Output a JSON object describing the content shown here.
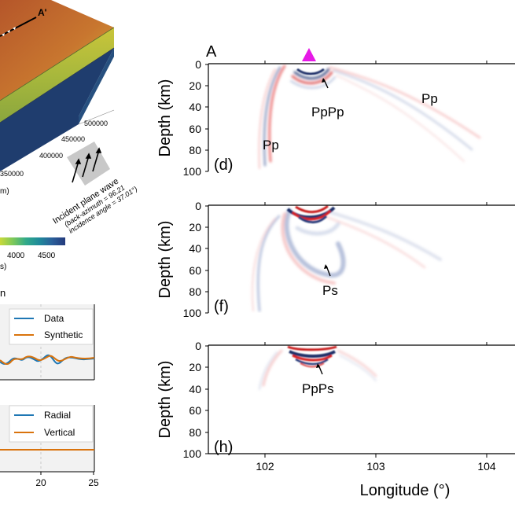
{
  "left": {
    "point_label": "A'",
    "y_ticks": [
      "500000",
      "450000",
      "400000",
      "350000"
    ],
    "y_unit": "m)",
    "wave_label": "Incident plane wave",
    "wave_sub": "(back-azimuth = 96.21",
    "wave_sub2": "incidence angle = 37.01°)",
    "colorbar_ticks": [
      "4000",
      "4500"
    ],
    "colorbar_unit": "s)",
    "colorbar_colors": [
      "#c8d93a",
      "#7cc85a",
      "#31a98a",
      "#1f8a9a",
      "#2b5f9a",
      "#243a7c"
    ],
    "panel_letter": "n",
    "legend1": [
      {
        "label": "Data",
        "color": "#1f77b4"
      },
      {
        "label": "Synthetic",
        "color": "#d9730d"
      }
    ],
    "legend2": [
      {
        "label": "Radial",
        "color": "#1f77b4"
      },
      {
        "label": "Vertical",
        "color": "#d9730d"
      }
    ],
    "x_ticks": [
      "20",
      "25"
    ]
  },
  "right": {
    "section_label": "A",
    "station_color": "#e619e6",
    "y_label": "Depth (km)",
    "y_ticks": [
      "0",
      "20",
      "40",
      "60",
      "80",
      "100"
    ],
    "x_label": "Longitude (°)",
    "x_ticks": [
      "102",
      "103",
      "104"
    ],
    "panels": [
      {
        "letter": "(d)",
        "phase_labels": [
          "PpPp",
          "Pp",
          "Pp"
        ]
      },
      {
        "letter": "(f)",
        "phase_labels": [
          "Ps"
        ]
      },
      {
        "letter": "(h)",
        "phase_labels": [
          "PpPs"
        ]
      }
    ]
  }
}
